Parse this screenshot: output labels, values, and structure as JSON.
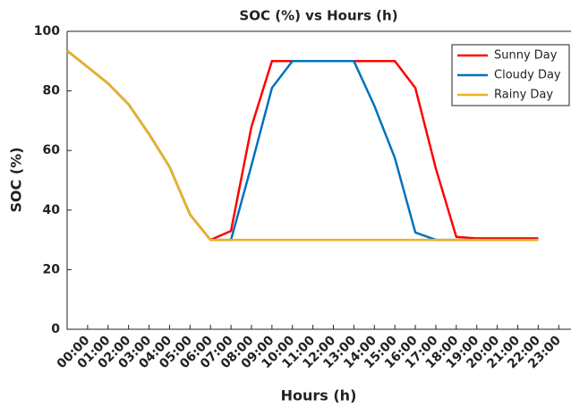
{
  "chart_data": {
    "type": "line",
    "title": "SOC (%) vs Hours (h)",
    "x_label": "Hours (h)",
    "y_label": "SOC (%)",
    "x": [
      0,
      1,
      2,
      3,
      4,
      5,
      6,
      7,
      8,
      9,
      10,
      11,
      12,
      13,
      14,
      15,
      16,
      17,
      18,
      19,
      20,
      21,
      22,
      23
    ],
    "series": [
      {
        "name": "Sunny Day",
        "color": "#ff0000",
        "values": [
          93.5,
          88,
          82.5,
          75.5,
          65.5,
          54.5,
          38.5,
          30,
          33,
          68,
          90,
          90,
          90,
          90,
          90,
          90,
          90,
          81,
          54,
          31,
          30.5,
          30.5,
          30.5,
          30.5
        ]
      },
      {
        "name": "Cloudy Day",
        "color": "#0072bd",
        "values": [
          93.5,
          88,
          82.5,
          75.5,
          65.5,
          54.5,
          38.5,
          30,
          30,
          55,
          81,
          90,
          90,
          90,
          90,
          75,
          57.5,
          32.5,
          30,
          30,
          30,
          30,
          30,
          30
        ]
      },
      {
        "name": "Rainy Day",
        "color": "#edb120",
        "values": [
          93.5,
          88,
          82.5,
          75.5,
          65.5,
          54.5,
          38.5,
          30,
          30,
          30,
          30,
          30,
          30,
          30,
          30,
          30,
          30,
          30,
          30,
          30,
          30,
          30,
          30,
          30
        ]
      }
    ],
    "xlim": [
      0,
      24.6
    ],
    "ylim": [
      0,
      100
    ],
    "xticks": [
      {
        "value": 1,
        "label": "00:00"
      },
      {
        "value": 2,
        "label": "01:00"
      },
      {
        "value": 3,
        "label": "02:00"
      },
      {
        "value": 4,
        "label": "03:00"
      },
      {
        "value": 5,
        "label": "04:00"
      },
      {
        "value": 6,
        "label": "05:00"
      },
      {
        "value": 7,
        "label": "06:00"
      },
      {
        "value": 8,
        "label": "07:00"
      },
      {
        "value": 9,
        "label": "08:00"
      },
      {
        "value": 10,
        "label": "09:00"
      },
      {
        "value": 11,
        "label": "10:00"
      },
      {
        "value": 12,
        "label": "11:00"
      },
      {
        "value": 13,
        "label": "12:00"
      },
      {
        "value": 14,
        "label": "13:00"
      },
      {
        "value": 15,
        "label": "14:00"
      },
      {
        "value": 16,
        "label": "15:00"
      },
      {
        "value": 17,
        "label": "16:00"
      },
      {
        "value": 18,
        "label": "17:00"
      },
      {
        "value": 19,
        "label": "18:00"
      },
      {
        "value": 20,
        "label": "19:00"
      },
      {
        "value": 21,
        "label": "20:00"
      },
      {
        "value": 22,
        "label": "21:00"
      },
      {
        "value": 23,
        "label": "22:00"
      },
      {
        "value": 24,
        "label": "23:00"
      }
    ],
    "yticks": [
      0,
      20,
      40,
      60,
      80,
      100
    ],
    "grid": false,
    "legend": "upper right"
  }
}
